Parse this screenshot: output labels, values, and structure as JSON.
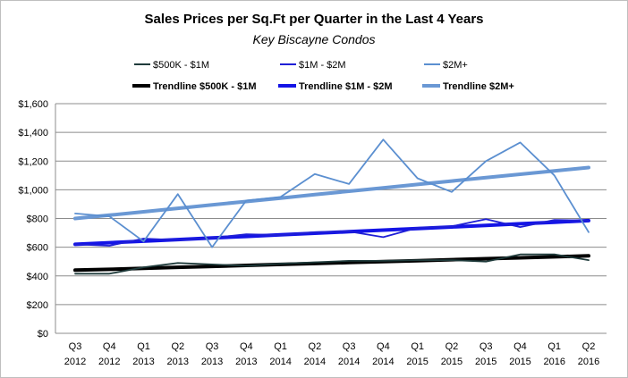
{
  "chart_data": {
    "type": "line",
    "title": "Sales Prices per Sq.Ft per Quarter in the Last 4 Years",
    "subtitle": "Key Biscayne Condos",
    "xlabel": "",
    "ylabel": "",
    "ylim": [
      0,
      1600
    ],
    "ytick_step": 200,
    "ytick_labels": [
      "$0",
      "$200",
      "$400",
      "$600",
      "$800",
      "$1,000",
      "$1,200",
      "$1,400",
      "$1,600"
    ],
    "grid": true,
    "legend_position": "top",
    "categories": [
      {
        "q": "Q3",
        "y": "2012"
      },
      {
        "q": "Q4",
        "y": "2012"
      },
      {
        "q": "Q1",
        "y": "2013"
      },
      {
        "q": "Q2",
        "y": "2013"
      },
      {
        "q": "Q3",
        "y": "2013"
      },
      {
        "q": "Q4",
        "y": "2013"
      },
      {
        "q": "Q1",
        "y": "2014"
      },
      {
        "q": "Q2",
        "y": "2014"
      },
      {
        "q": "Q3",
        "y": "2014"
      },
      {
        "q": "Q4",
        "y": "2014"
      },
      {
        "q": "Q1",
        "y": "2015"
      },
      {
        "q": "Q2",
        "y": "2015"
      },
      {
        "q": "Q3",
        "y": "2015"
      },
      {
        "q": "Q4",
        "y": "2015"
      },
      {
        "q": "Q1",
        "y": "2016"
      },
      {
        "q": "Q2",
        "y": "2016"
      }
    ],
    "series": [
      {
        "name": "$500K - $1M",
        "key": "s500k",
        "color": "#1f3b3b",
        "kind": "data",
        "values": [
          415,
          415,
          460,
          490,
          480,
          470,
          485,
          495,
          505,
          505,
          510,
          510,
          500,
          550,
          550,
          510
        ]
      },
      {
        "name": "$1M - $2M",
        "key": "s1m",
        "color": "#1f1fd6",
        "kind": "data",
        "values": [
          620,
          610,
          660,
          650,
          665,
          690,
          685,
          705,
          710,
          670,
          735,
          745,
          795,
          740,
          790,
          785
        ]
      },
      {
        "name": "$2M+",
        "key": "s2m",
        "color": "#5b8fd0",
        "kind": "data",
        "values": [
          835,
          815,
          640,
          970,
          600,
          925,
          950,
          1110,
          1040,
          1350,
          1080,
          985,
          1200,
          1330,
          1100,
          705
        ]
      },
      {
        "name": "Trendline $500K - $1M",
        "key": "t500k",
        "color": "#000000",
        "kind": "trend",
        "values": [
          440,
          446,
          453,
          460,
          466,
          473,
          480,
          486,
          493,
          500,
          506,
          513,
          520,
          526,
          533,
          540
        ]
      },
      {
        "name": "Trendline $1M - $2M",
        "key": "t1m",
        "color": "#1414e6",
        "kind": "trend",
        "values": [
          620,
          631,
          642,
          653,
          664,
          675,
          686,
          697,
          708,
          719,
          730,
          741,
          752,
          763,
          774,
          785
        ]
      },
      {
        "name": "Trendline $2M+",
        "key": "t2m",
        "color": "#6a98d4",
        "kind": "trend",
        "values": [
          800,
          823,
          847,
          871,
          895,
          918,
          942,
          966,
          990,
          1013,
          1037,
          1061,
          1085,
          1108,
          1132,
          1155
        ]
      }
    ]
  }
}
